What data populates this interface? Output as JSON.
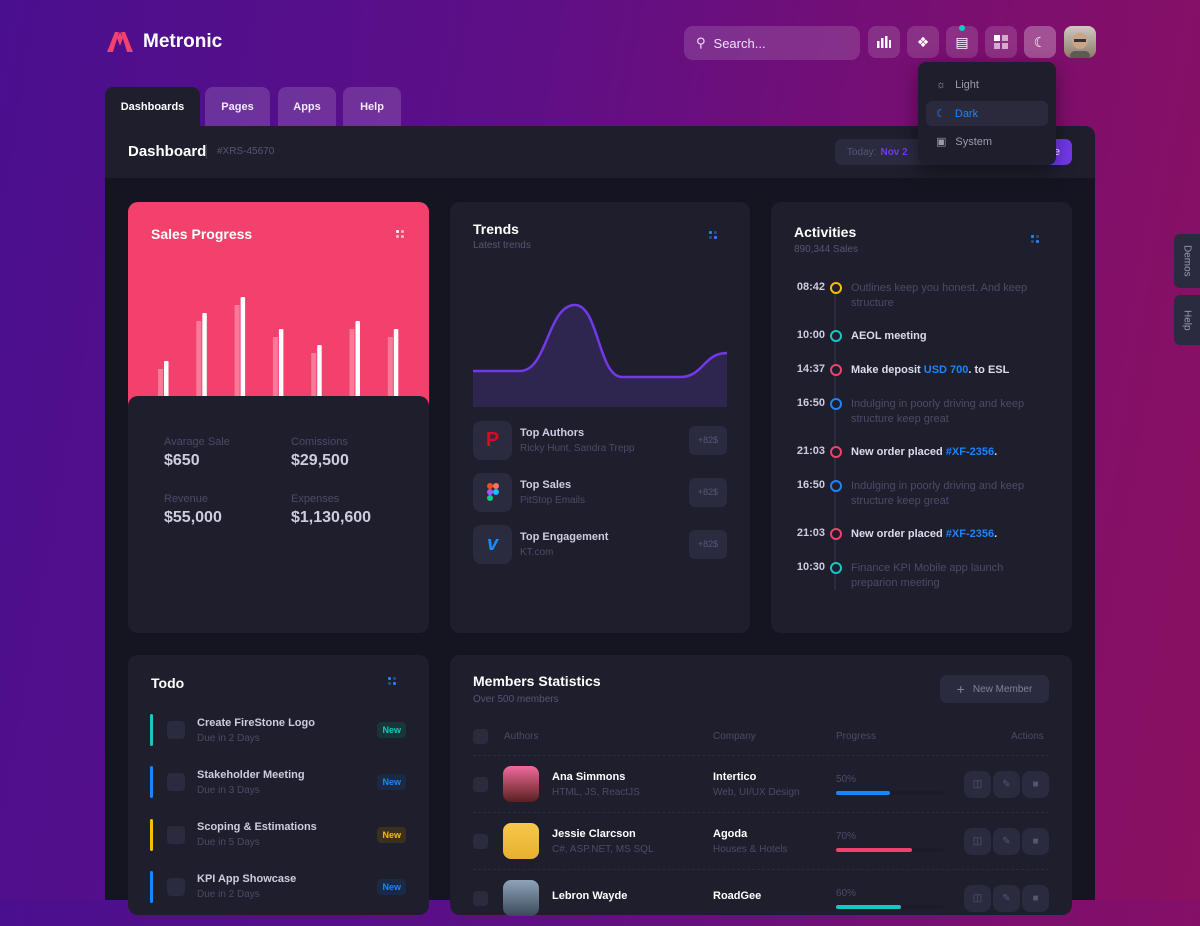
{
  "brand": {
    "name": "Metronic",
    "color": "#f1416c"
  },
  "topbar": {
    "search_placeholder": "Search...",
    "icons": [
      "chart-bar-icon",
      "diamonds-icon",
      "chat-icon",
      "grid-icon",
      "moon-icon"
    ],
    "notification_dot_color": "#17c6c6"
  },
  "theme_menu": {
    "items": [
      {
        "label": "Light",
        "icon": "sun-icon"
      },
      {
        "label": "Dark",
        "icon": "moon-icon",
        "active": true
      },
      {
        "label": "System",
        "icon": "monitor-icon"
      }
    ]
  },
  "tabs": [
    {
      "label": "Dashboards",
      "active": true
    },
    {
      "label": "Pages"
    },
    {
      "label": "Apps"
    },
    {
      "label": "Help"
    }
  ],
  "header": {
    "title": "Dashboard",
    "code": "#XRS-45670",
    "today_label": "Today:",
    "today_value": "Nov 2",
    "primary_button_partial": "e"
  },
  "side_tabs": [
    "Demos",
    "Help"
  ],
  "sales": {
    "title": "Sales Progress",
    "color": "#f1416c",
    "chart_data": {
      "type": "bar",
      "series": [
        {
          "values": [
            28,
            76,
            92,
            60,
            44,
            68,
            60
          ]
        },
        {
          "values": [
            36,
            84,
            100,
            68,
            52,
            76,
            68
          ]
        }
      ]
    },
    "stats": [
      {
        "label": "Avarage Sale",
        "value": "$650"
      },
      {
        "label": "Comissions",
        "value": "$29,500"
      },
      {
        "label": "Revenue",
        "value": "$55,000"
      },
      {
        "label": "Expenses",
        "value": "$1,130,600"
      }
    ]
  },
  "trends": {
    "title": "Trends",
    "subtitle": "Latest trends",
    "chart_data": {
      "type": "area",
      "values": [
        30,
        30,
        85,
        25,
        25,
        45
      ],
      "ylim": [
        0,
        100
      ],
      "color": "#7239ea"
    },
    "items": [
      {
        "title": "Top Authors",
        "sub": "Ricky Hunt, Sandra Trepp",
        "badge": "+82$",
        "icon": "pinterest-logo-icon"
      },
      {
        "title": "Top Sales",
        "sub": "PitStop Emails",
        "badge": "+82$",
        "icon": "figma-logo-icon"
      },
      {
        "title": "Top Engagement",
        "sub": "KT.com",
        "badge": "+82$",
        "icon": "vimeo-logo-icon"
      }
    ]
  },
  "activities": {
    "title": "Activities",
    "subtitle": "890,344 Sales",
    "items": [
      {
        "time": "08:42",
        "color": "#f6c000",
        "text": "Outlines keep you honest. And keep structure",
        "bold": false
      },
      {
        "time": "10:00",
        "color": "#17c6c6",
        "text": "AEOL meeting",
        "bold": true
      },
      {
        "time": "14:37",
        "color": "#f1416c",
        "pre": "Make deposit ",
        "link": "USD 700",
        "post": ". to ESL",
        "bold": true
      },
      {
        "time": "16:50",
        "color": "#1b84ff",
        "text": "Indulging in poorly driving and keep structure keep great",
        "bold": false
      },
      {
        "time": "21:03",
        "color": "#f1416c",
        "pre": "New order placed ",
        "link": "#XF-2356",
        "post": ".",
        "bold": true
      },
      {
        "time": "16:50",
        "color": "#1b84ff",
        "text": "Indulging in poorly driving and keep structure keep great",
        "bold": false
      },
      {
        "time": "21:03",
        "color": "#f1416c",
        "pre": "New order placed ",
        "link": "#XF-2356",
        "post": ".",
        "bold": true
      },
      {
        "time": "10:30",
        "color": "#17c6c6",
        "text": "Finance KPI Mobile app launch preparion meeting",
        "bold": false
      }
    ]
  },
  "todo": {
    "title": "Todo",
    "items": [
      {
        "title": "Create FireStone Logo",
        "due": "Due in 2 Days",
        "badge": "New",
        "color": "#17c6c6"
      },
      {
        "title": "Stakeholder Meeting",
        "due": "Due in 3 Days",
        "badge": "New",
        "color": "#1b84ff"
      },
      {
        "title": "Scoping & Estimations",
        "due": "Due in 5 Days",
        "badge": "New",
        "color": "#f6c000"
      },
      {
        "title": "KPI App Showcase",
        "due": "Due in 2 Days",
        "badge": "New",
        "color": "#1b84ff"
      }
    ]
  },
  "members": {
    "title": "Members Statistics",
    "subtitle": "Over 500 members",
    "new_button": "New Member",
    "columns": [
      "Authors",
      "Company",
      "Progress",
      "Actions"
    ],
    "rows": [
      {
        "name": "Ana Simmons",
        "skills": "HTML, JS, ReactJS",
        "company": "Intertico",
        "company_sub": "Web, UI/UX Design",
        "progress": "50%",
        "progress_value": 50,
        "color": "#1b84ff"
      },
      {
        "name": "Jessie Clarcson",
        "skills": "C#, ASP.NET, MS SQL",
        "company": "Agoda",
        "company_sub": "Houses & Hotels",
        "progress": "70%",
        "progress_value": 70,
        "color": "#f1416c"
      },
      {
        "name": "Lebron Wayde",
        "skills": "",
        "company": "RoadGee",
        "company_sub": "",
        "progress": "60%",
        "progress_value": 60,
        "color": "#17c6c6"
      }
    ]
  }
}
